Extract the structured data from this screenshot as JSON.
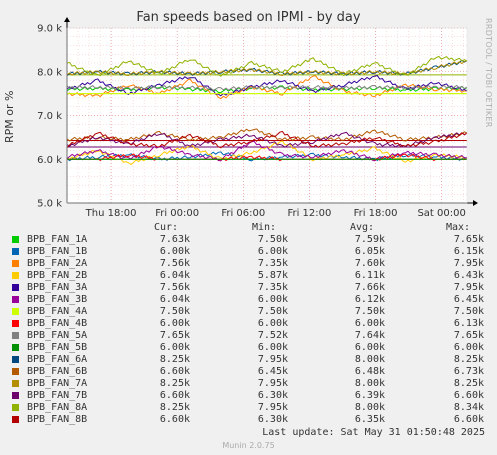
{
  "title": "Fan speeds based on IPMI - by day",
  "side_text": "RRDTOOL / TOBI OETIKER",
  "legend_headers": {
    "cur": "Cur:",
    "min": "Min:",
    "avg": "Avg:",
    "max": "Max:"
  },
  "footer": "Last update: Sat May 31 01:50:48 2025",
  "munin_version": "Munin 2.0.75",
  "chart_data": {
    "type": "line",
    "title": "Fan speeds based on IPMI - by day",
    "ylabel": "RPM or %",
    "xlabel": "",
    "ylim": [
      5000,
      9000
    ],
    "y_ticks": [
      {
        "value": 5000,
        "label": "5.0 k"
      },
      {
        "value": 6000,
        "label": "6.0 k"
      },
      {
        "value": 7000,
        "label": "7.0 k"
      },
      {
        "value": 8000,
        "label": "8.0 k"
      },
      {
        "value": 9000,
        "label": "9.0 k"
      }
    ],
    "x_range_hours": [
      -4,
      32.3
    ],
    "x_ticks": [
      {
        "hour": 0,
        "label": "Thu 18:00"
      },
      {
        "hour": 6,
        "label": "Fri 00:00"
      },
      {
        "hour": 12,
        "label": "Fri 06:00"
      },
      {
        "hour": 18,
        "label": "Fri 12:00"
      },
      {
        "hour": 24,
        "label": "Fri 18:00"
      },
      {
        "hour": 30,
        "label": "Sat 00:00"
      }
    ],
    "grid": true,
    "series": [
      {
        "name": "BPB_FAN_1A",
        "color": "#00cc00",
        "cur": "7.63k",
        "min": "7.50k",
        "avg": "7.59k",
        "max": "7.65k",
        "values": [
          7600,
          7620,
          7580,
          7650,
          7600,
          7560,
          7620,
          7640,
          7590,
          7600,
          7630,
          7580,
          7610,
          7630
        ]
      },
      {
        "name": "BPB_FAN_1B",
        "color": "#0066b3",
        "cur": "6.00k",
        "min": "6.00k",
        "avg": "6.05k",
        "max": "6.15k",
        "values": [
          6000,
          6050,
          6100,
          6000,
          6050,
          6150,
          6000,
          6050,
          6100,
          6050,
          6000,
          6100,
          6050,
          6000
        ]
      },
      {
        "name": "BPB_FAN_2A",
        "color": "#ff8000",
        "cur": "7.56k",
        "min": "7.35k",
        "avg": "7.60k",
        "max": "7.95k",
        "values": [
          7500,
          7450,
          7700,
          7500,
          7800,
          7400,
          7650,
          7500,
          7900,
          7550,
          7450,
          7700,
          7600,
          7560
        ]
      },
      {
        "name": "BPB_FAN_2B",
        "color": "#ffcc00",
        "cur": "6.04k",
        "min": "5.87k",
        "avg": "6.11k",
        "max": "6.43k",
        "values": [
          6000,
          6200,
          5900,
          6100,
          6300,
          6000,
          6150,
          6400,
          6000,
          6100,
          6250,
          5950,
          6100,
          6040
        ]
      },
      {
        "name": "BPB_FAN_3A",
        "color": "#330099",
        "cur": "7.56k",
        "min": "7.35k",
        "avg": "7.66k",
        "max": "7.95k",
        "values": [
          7600,
          7800,
          7500,
          7700,
          7900,
          7450,
          7650,
          7800,
          7550,
          7700,
          7900,
          7600,
          7750,
          7560
        ]
      },
      {
        "name": "BPB_FAN_3B",
        "color": "#990099",
        "cur": "6.04k",
        "min": "6.00k",
        "avg": "6.12k",
        "max": "6.45k",
        "values": [
          6050,
          6200,
          6000,
          6300,
          6100,
          6000,
          6400,
          6100,
          6050,
          6200,
          6000,
          6150,
          6100,
          6040
        ]
      },
      {
        "name": "BPB_FAN_4A",
        "color": "#ccff00",
        "cur": "7.50k",
        "min": "7.50k",
        "avg": "7.50k",
        "max": "7.50k",
        "values": [
          7500,
          7500,
          7500,
          7500,
          7500,
          7500,
          7500,
          7500,
          7500,
          7500,
          7500,
          7500,
          7500,
          7500
        ]
      },
      {
        "name": "BPB_FAN_4B",
        "color": "#ff0000",
        "cur": "6.00k",
        "min": "6.00k",
        "avg": "6.00k",
        "max": "6.13k",
        "values": [
          6000,
          6000,
          6100,
          6000,
          6000,
          6000,
          6050,
          6000,
          6000,
          6000,
          6000,
          6100,
          6000,
          6000
        ]
      },
      {
        "name": "BPB_FAN_5A",
        "color": "#808080",
        "cur": "7.65k",
        "min": "7.52k",
        "avg": "7.64k",
        "max": "7.65k",
        "values": [
          7640,
          7650,
          7620,
          7650,
          7640,
          7600,
          7650,
          7640,
          7650,
          7630,
          7650,
          7640,
          7650,
          7650
        ]
      },
      {
        "name": "BPB_FAN_5B",
        "color": "#008f00",
        "cur": "6.00k",
        "min": "6.00k",
        "avg": "6.00k",
        "max": "6.00k",
        "values": [
          6000,
          6000,
          6000,
          6000,
          6000,
          6000,
          6000,
          6000,
          6000,
          6000,
          6000,
          6000,
          6000,
          6000
        ]
      },
      {
        "name": "BPB_FAN_6A",
        "color": "#00487d",
        "cur": "8.25k",
        "min": "7.95k",
        "avg": "8.00k",
        "max": "8.25k",
        "values": [
          7950,
          8000,
          7950,
          8000,
          7950,
          8000,
          8050,
          7950,
          8000,
          7950,
          8000,
          7950,
          8100,
          8250
        ]
      },
      {
        "name": "BPB_FAN_6B",
        "color": "#b35a00",
        "cur": "6.60k",
        "min": "6.45k",
        "avg": "6.48k",
        "max": "6.73k",
        "values": [
          6450,
          6500,
          6450,
          6600,
          6450,
          6500,
          6700,
          6450,
          6500,
          6450,
          6650,
          6450,
          6500,
          6600
        ]
      },
      {
        "name": "BPB_FAN_7A",
        "color": "#b38f00",
        "cur": "8.25k",
        "min": "7.95k",
        "avg": "8.00k",
        "max": "8.25k",
        "values": [
          7950,
          8000,
          7950,
          8000,
          7950,
          8000,
          8050,
          7950,
          8000,
          7950,
          8000,
          7950,
          8100,
          8250
        ]
      },
      {
        "name": "BPB_FAN_7B",
        "color": "#6b006b",
        "cur": "6.60k",
        "min": "6.30k",
        "avg": "6.39k",
        "max": "6.60k",
        "values": [
          6300,
          6500,
          6350,
          6600,
          6300,
          6450,
          6550,
          6300,
          6400,
          6600,
          6350,
          6300,
          6500,
          6600
        ]
      },
      {
        "name": "BPB_FAN_8A",
        "color": "#8fb300",
        "cur": "8.25k",
        "min": "7.95k",
        "avg": "8.00k",
        "max": "8.34k",
        "values": [
          8200,
          7900,
          8250,
          7950,
          8300,
          7900,
          8200,
          8000,
          8300,
          7950,
          8200,
          7900,
          8340,
          8250
        ]
      },
      {
        "name": "BPB_FAN_8B",
        "color": "#b30000",
        "cur": "6.60k",
        "min": "6.30k",
        "avg": "6.35k",
        "max": "6.60k",
        "values": [
          6300,
          6600,
          6350,
          6300,
          6550,
          6300,
          6400,
          6600,
          6300,
          6350,
          6500,
          6300,
          6400,
          6600
        ]
      }
    ],
    "thresholds": [
      {
        "value": 7930,
        "color": "#8fb300"
      },
      {
        "value": 7500,
        "color": "#ccff00"
      },
      {
        "value": 6430,
        "color": "#b30000"
      },
      {
        "value": 6280,
        "color": "#6b006b"
      },
      {
        "value": 6000,
        "color": "#008f00"
      }
    ]
  }
}
